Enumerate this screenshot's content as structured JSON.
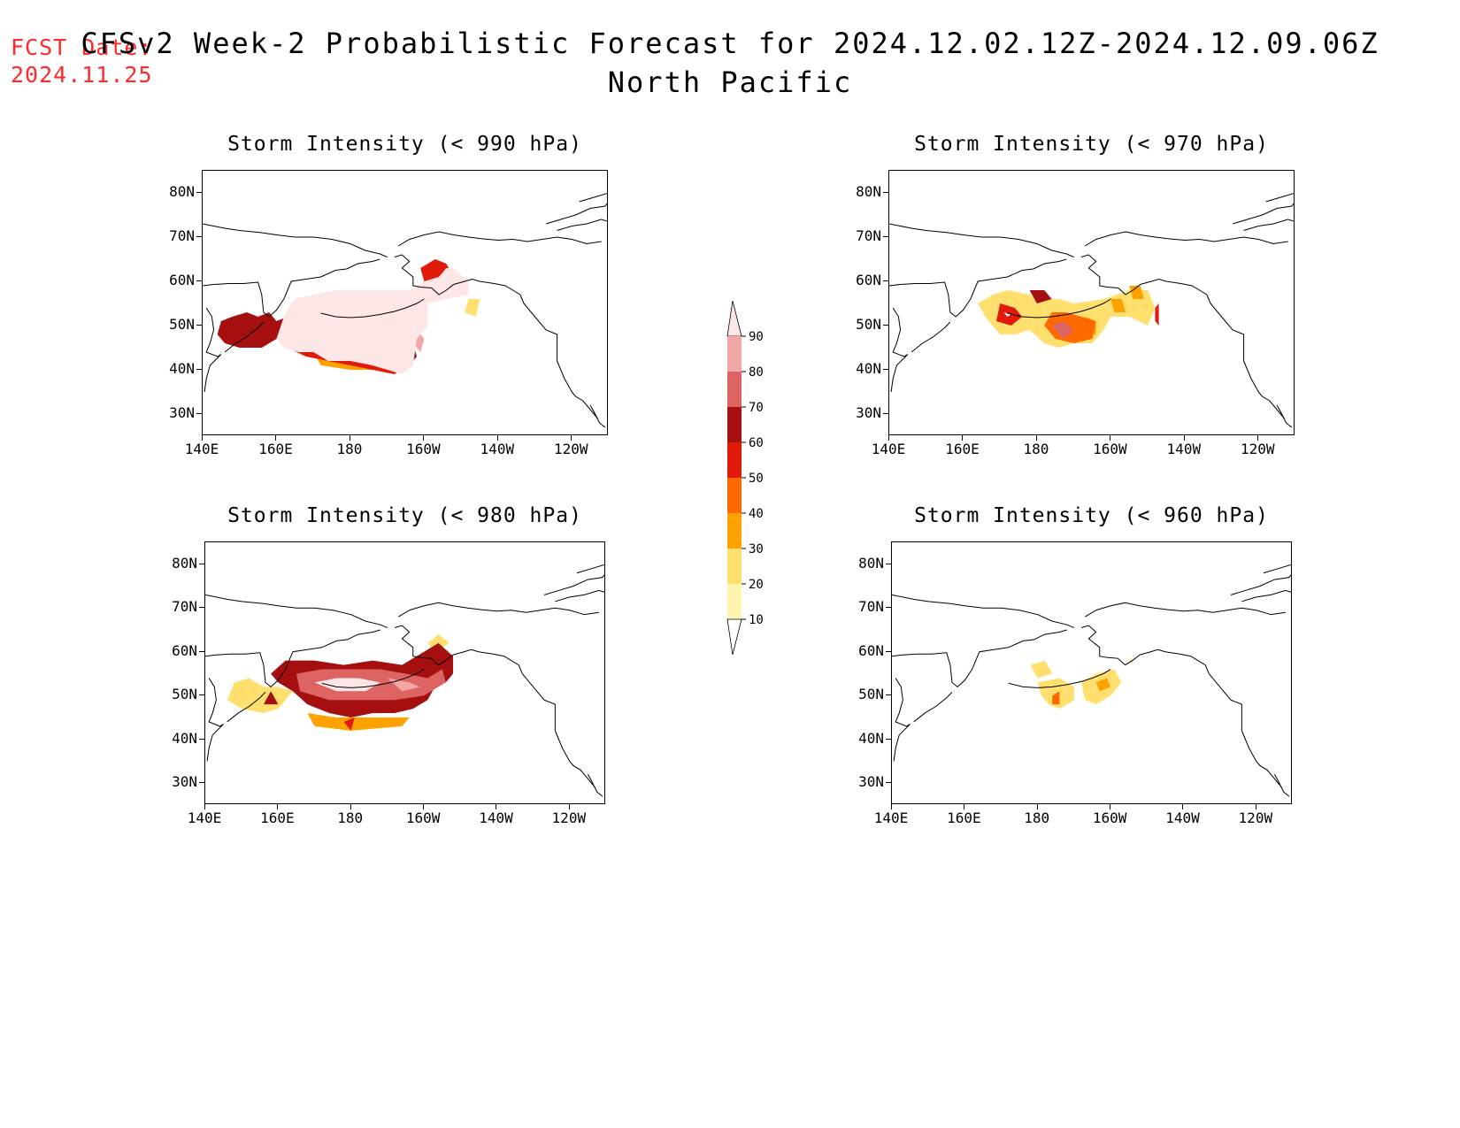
{
  "header": {
    "fcst_label": "FCST Date:",
    "fcst_date": "2024.11.25",
    "title_line1": "CFSv2 Week-2 Probabilistic Forecast for 2024.12.02.12Z-2024.12.09.06Z",
    "title_line2": "North Pacific"
  },
  "axes": {
    "lat_labels": [
      "80N",
      "70N",
      "60N",
      "50N",
      "40N",
      "30N"
    ],
    "lon_labels": [
      "140E",
      "160E",
      "180",
      "160W",
      "140W",
      "120W"
    ]
  },
  "colorbar": {
    "levels": [
      "90",
      "80",
      "70",
      "60",
      "50",
      "40",
      "30",
      "20",
      "10"
    ],
    "colors": [
      "#fce6e6",
      "#f2a7a7",
      "#de6464",
      "#a50f0f",
      "#e21a0a",
      "#ff6a00",
      "#ffa200",
      "#ffe06e",
      "#fff5b0"
    ]
  },
  "panels": [
    {
      "id": "p990",
      "title": "Storm Intensity (< 990 hPa)"
    },
    {
      "id": "p980",
      "title": "Storm Intensity (< 980 hPa)"
    },
    {
      "id": "p970",
      "title": "Storm Intensity (< 970 hPa)"
    },
    {
      "id": "p960",
      "title": "Storm Intensity (< 960 hPa)"
    }
  ]
}
